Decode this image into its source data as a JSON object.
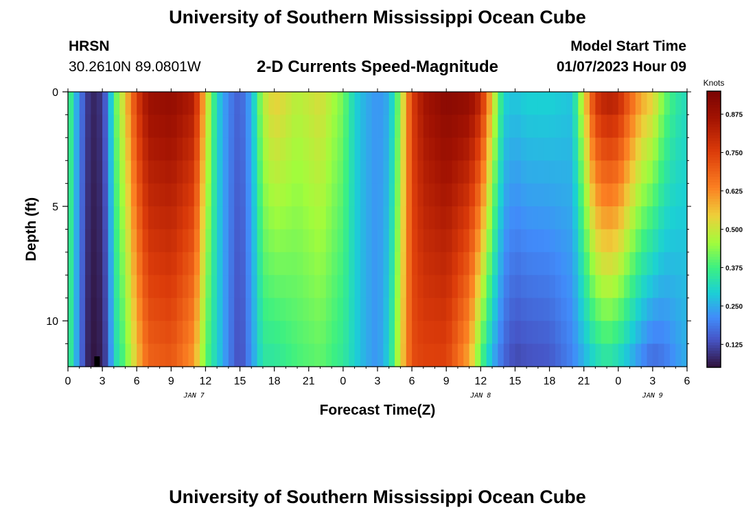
{
  "page_title": "University of Southern Mississippi Ocean Cube",
  "station": {
    "name": "HRSN",
    "coords": "30.2610N  89.0801W"
  },
  "model": {
    "label": "Model Start Time",
    "time": "01/07/2023 Hour 09"
  },
  "chart_data": {
    "type": "heatmap",
    "title": "2-D Currents Speed-Magnitude",
    "xlabel": "Forecast Time(Z)",
    "ylabel": "Depth (ft)",
    "x_ticks": [
      "0",
      "3",
      "6",
      "9",
      "12",
      "15",
      "18",
      "21",
      "0",
      "3",
      "6",
      "9",
      "12",
      "15",
      "18",
      "21",
      "0",
      "3",
      "6"
    ],
    "x_hours": [
      0,
      3,
      6,
      9,
      12,
      15,
      18,
      21,
      24,
      27,
      30,
      33,
      36,
      39,
      42,
      45,
      48,
      51,
      54
    ],
    "xlim": [
      0,
      54
    ],
    "y_ticks": [
      "0",
      "5",
      "10"
    ],
    "y_values": [
      0,
      5,
      10
    ],
    "ylim": [
      0,
      12
    ],
    "date_labels": [
      {
        "text": "JAN 7",
        "hour": 11
      },
      {
        "text": "JAN 8",
        "hour": 36
      },
      {
        "text": "JAN 9",
        "hour": 51
      }
    ],
    "colorbar": {
      "label": "Knots",
      "range": [
        0.05,
        0.95
      ],
      "ticks": [
        "0.125",
        "0.250",
        "0.375",
        "0.500",
        "0.625",
        "0.750",
        "0.875"
      ],
      "tick_values": [
        0.125,
        0.25,
        0.375,
        0.5,
        0.625,
        0.75,
        0.875
      ]
    },
    "speed_profiles": {
      "note": "approximate speed (knots) vs forecast hour at surface (0 ft) and bottom (12 ft); intermediate depths interpolated",
      "hours": [
        0,
        0.5,
        1,
        1.5,
        2,
        3,
        3.5,
        4,
        5,
        6,
        7,
        9,
        11,
        12,
        13,
        14,
        15,
        16,
        17,
        18,
        20,
        22,
        24,
        25,
        26,
        27,
        28,
        29,
        30,
        31,
        33,
        35,
        36,
        37,
        38,
        39,
        40,
        42,
        44,
        46,
        47,
        48,
        49,
        50,
        51,
        52,
        53,
        54
      ],
      "surface": [
        0.42,
        0.3,
        0.2,
        0.13,
        0.07,
        0.1,
        0.2,
        0.38,
        0.55,
        0.76,
        0.88,
        0.9,
        0.84,
        0.55,
        0.3,
        0.2,
        0.15,
        0.25,
        0.48,
        0.55,
        0.48,
        0.52,
        0.42,
        0.3,
        0.25,
        0.22,
        0.25,
        0.45,
        0.75,
        0.86,
        0.92,
        0.9,
        0.82,
        0.55,
        0.3,
        0.28,
        0.3,
        0.3,
        0.28,
        0.78,
        0.84,
        0.82,
        0.7,
        0.6,
        0.55,
        0.42,
        0.35,
        0.32
      ],
      "bottom": [
        0.4,
        0.3,
        0.2,
        0.1,
        0.05,
        0.07,
        0.15,
        0.3,
        0.4,
        0.55,
        0.68,
        0.7,
        0.6,
        0.4,
        0.3,
        0.2,
        0.12,
        0.22,
        0.34,
        0.34,
        0.38,
        0.4,
        0.35,
        0.3,
        0.25,
        0.22,
        0.3,
        0.52,
        0.72,
        0.74,
        0.74,
        0.58,
        0.38,
        0.25,
        0.16,
        0.12,
        0.13,
        0.14,
        0.2,
        0.3,
        0.33,
        0.3,
        0.25,
        0.2,
        0.16,
        0.18,
        0.22,
        0.25
      ]
    }
  }
}
